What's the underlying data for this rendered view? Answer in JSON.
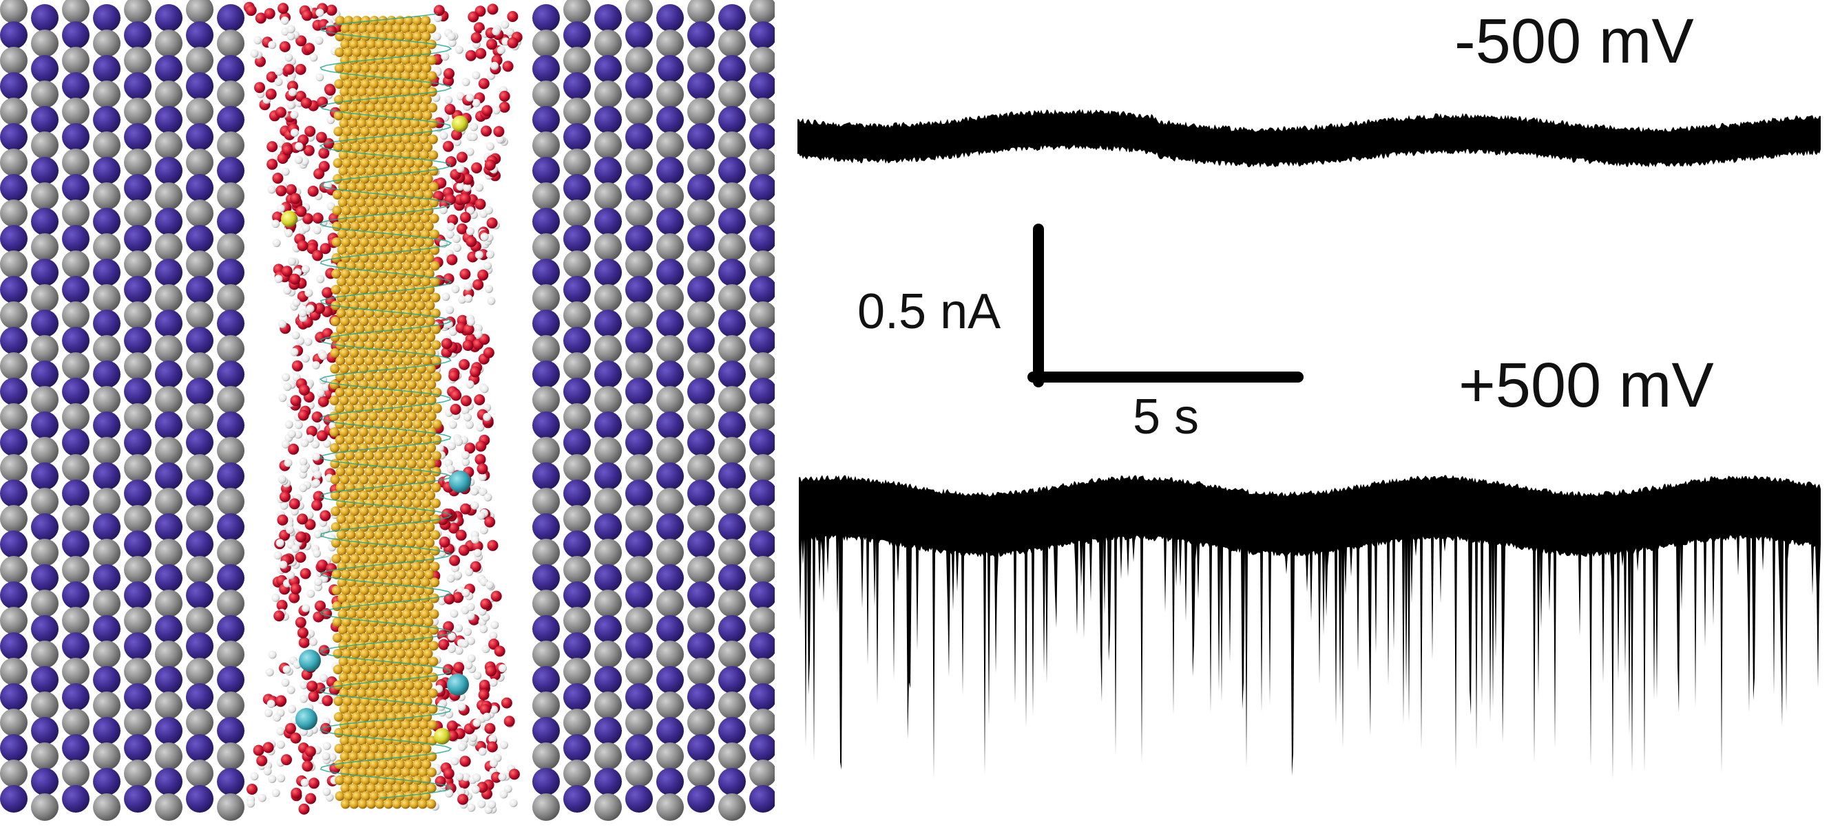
{
  "figure": {
    "simulation": {
      "description_colors": {
        "wall_dark": "#3d2a8e",
        "wall_gray": "#8a8a8a",
        "core_gold": "#d9a31e",
        "helix_teal": "#1fa88f",
        "oxygen_red": "#c8102e",
        "hydrogen_white": "#f2f2f2",
        "ion_cyan": "#3aa8b8",
        "ion_yellow": "#d4d42a"
      }
    },
    "traces": {
      "negative_label": "-500 mV",
      "positive_label": "+500 mV",
      "trace_color": "#000000"
    },
    "scale_bar": {
      "current_label": "0.5 nA",
      "time_label": "5 s"
    }
  }
}
